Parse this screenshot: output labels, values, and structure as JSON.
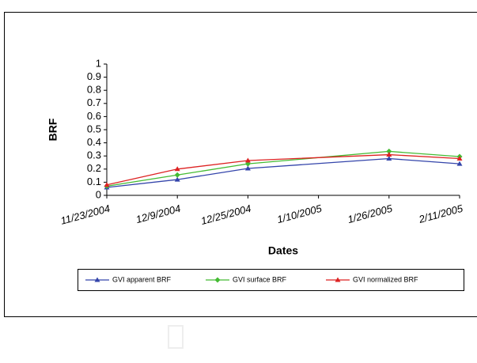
{
  "chart_data": {
    "type": "line",
    "x_label": "Dates",
    "y_label": "BRF",
    "x": [
      "11/23/2004",
      "12/9/2004",
      "12/25/2004",
      "1/26/2005",
      "2/11/2005"
    ],
    "xlim": [
      "11/23/2004",
      "2/11/2005"
    ],
    "xticks": [
      "11/23/2004",
      "12/9/2004",
      "12/25/2004",
      "1/10/2005",
      "1/26/2005",
      "2/11/2005"
    ],
    "ylim": [
      0,
      1
    ],
    "yticks": [
      0,
      0.1,
      0.2,
      0.3,
      0.4,
      0.5,
      0.6,
      0.7,
      0.8,
      0.9,
      1
    ],
    "legend": "bottom",
    "series": [
      {
        "name": "GVI apparent BRF",
        "color": "#3344aa",
        "marker": "triangle",
        "values": [
          0.06,
          0.12,
          0.205,
          0.28,
          0.24
        ]
      },
      {
        "name": "GVI surface BRF",
        "color": "#44bb33",
        "marker": "diamond",
        "values": [
          0.07,
          0.155,
          0.24,
          0.335,
          0.295
        ]
      },
      {
        "name": "GVI normalized BRF",
        "color": "#dd2222",
        "marker": "triangle",
        "values": [
          0.08,
          0.2,
          0.265,
          0.31,
          0.28
        ]
      }
    ]
  }
}
